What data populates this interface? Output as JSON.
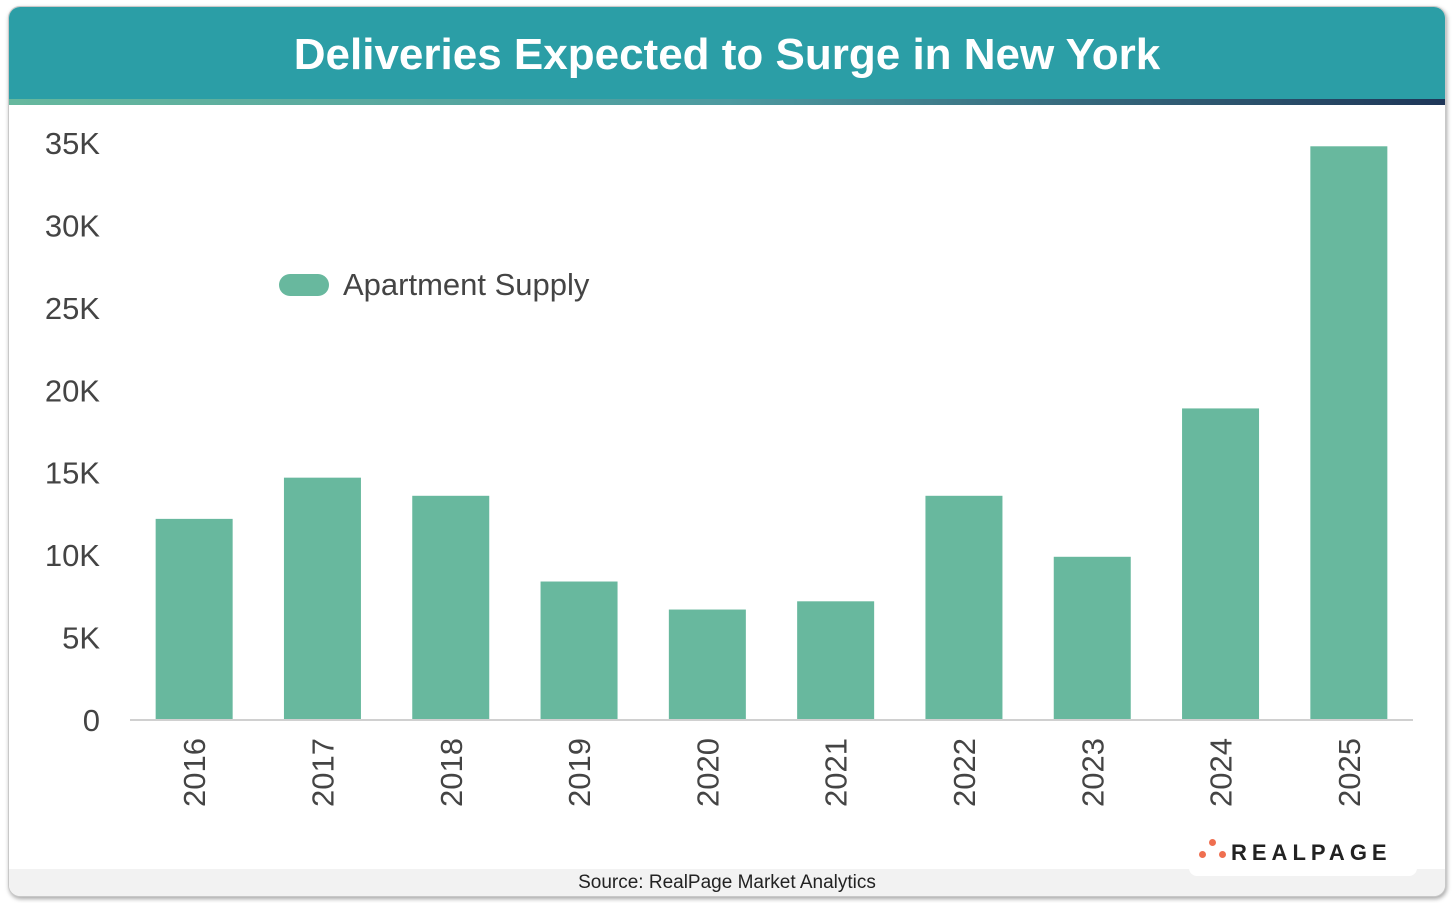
{
  "header": {
    "title": "Deliveries Expected to Surge in New York"
  },
  "footer": {
    "source": "Source: RealPage Market Analytics",
    "logo": "REALPAGE"
  },
  "colors": {
    "header": "#2b9ea6",
    "bar": "#68b89e",
    "logo_dots": "#ef6f50"
  },
  "chart_data": {
    "type": "bar",
    "title": "Deliveries Expected to Surge in New York",
    "categories": [
      "2016",
      "2017",
      "2018",
      "2019",
      "2020",
      "2021",
      "2022",
      "2023",
      "2024",
      "2025"
    ],
    "series": [
      {
        "name": "Apartment Supply",
        "values": [
          12200,
          14700,
          13600,
          8400,
          6700,
          7200,
          13600,
          9900,
          18900,
          34800
        ]
      }
    ],
    "ylim": [
      0,
      35000
    ],
    "yticks": [
      0,
      5000,
      10000,
      15000,
      20000,
      25000,
      30000,
      35000
    ],
    "ytick_labels": [
      "0",
      "5K",
      "10K",
      "15K",
      "20K",
      "25K",
      "30K",
      "35K"
    ],
    "xlabel": "",
    "ylabel": "",
    "legend": "top-left",
    "grid": false
  }
}
